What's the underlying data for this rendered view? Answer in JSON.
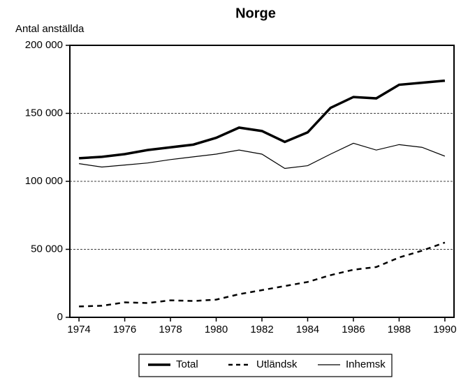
{
  "chart_data": {
    "type": "line",
    "title": "Norge",
    "y_label": "Antal anställda",
    "x": [
      1974,
      1975,
      1976,
      1977,
      1978,
      1979,
      1980,
      1981,
      1982,
      1983,
      1984,
      1985,
      1986,
      1987,
      1988,
      1989,
      1990
    ],
    "series": [
      {
        "name": "Total",
        "color": "#000000",
        "linestyle": "solid",
        "linewidth": 3.5,
        "values": [
          117000,
          118000,
          120000,
          123000,
          125000,
          127000,
          132000,
          139500,
          137000,
          129000,
          136000,
          154000,
          162000,
          161000,
          171000,
          172500,
          174000
        ]
      },
      {
        "name": "Utländsk",
        "color": "#000000",
        "linestyle": "dashed",
        "linewidth": 2.5,
        "values": [
          8000,
          8500,
          11000,
          10500,
          12500,
          12000,
          13000,
          17000,
          20000,
          23000,
          26000,
          31000,
          35000,
          37000,
          44000,
          49000,
          55000
        ]
      },
      {
        "name": "Inhemsk",
        "color": "#000000",
        "linestyle": "solid",
        "linewidth": 1.2,
        "values": [
          113000,
          110500,
          112000,
          113500,
          116000,
          118000,
          120000,
          123000,
          120000,
          109500,
          111500,
          120000,
          128000,
          123000,
          127000,
          125000,
          118500
        ]
      }
    ],
    "xlim": [
      1973.6,
      1990.4
    ],
    "xticks": [
      1974,
      1976,
      1978,
      1980,
      1982,
      1984,
      1986,
      1988,
      1990
    ],
    "ylim": [
      0,
      200000
    ],
    "yticks": [
      0,
      {
        "value": 50000,
        "label": "50 000"
      },
      {
        "value": 100000,
        "label": "100 000"
      },
      {
        "value": 150000,
        "label": "150 000"
      },
      {
        "value": 200000,
        "label": "200 000"
      }
    ],
    "grid": true,
    "legend": "bottom"
  }
}
